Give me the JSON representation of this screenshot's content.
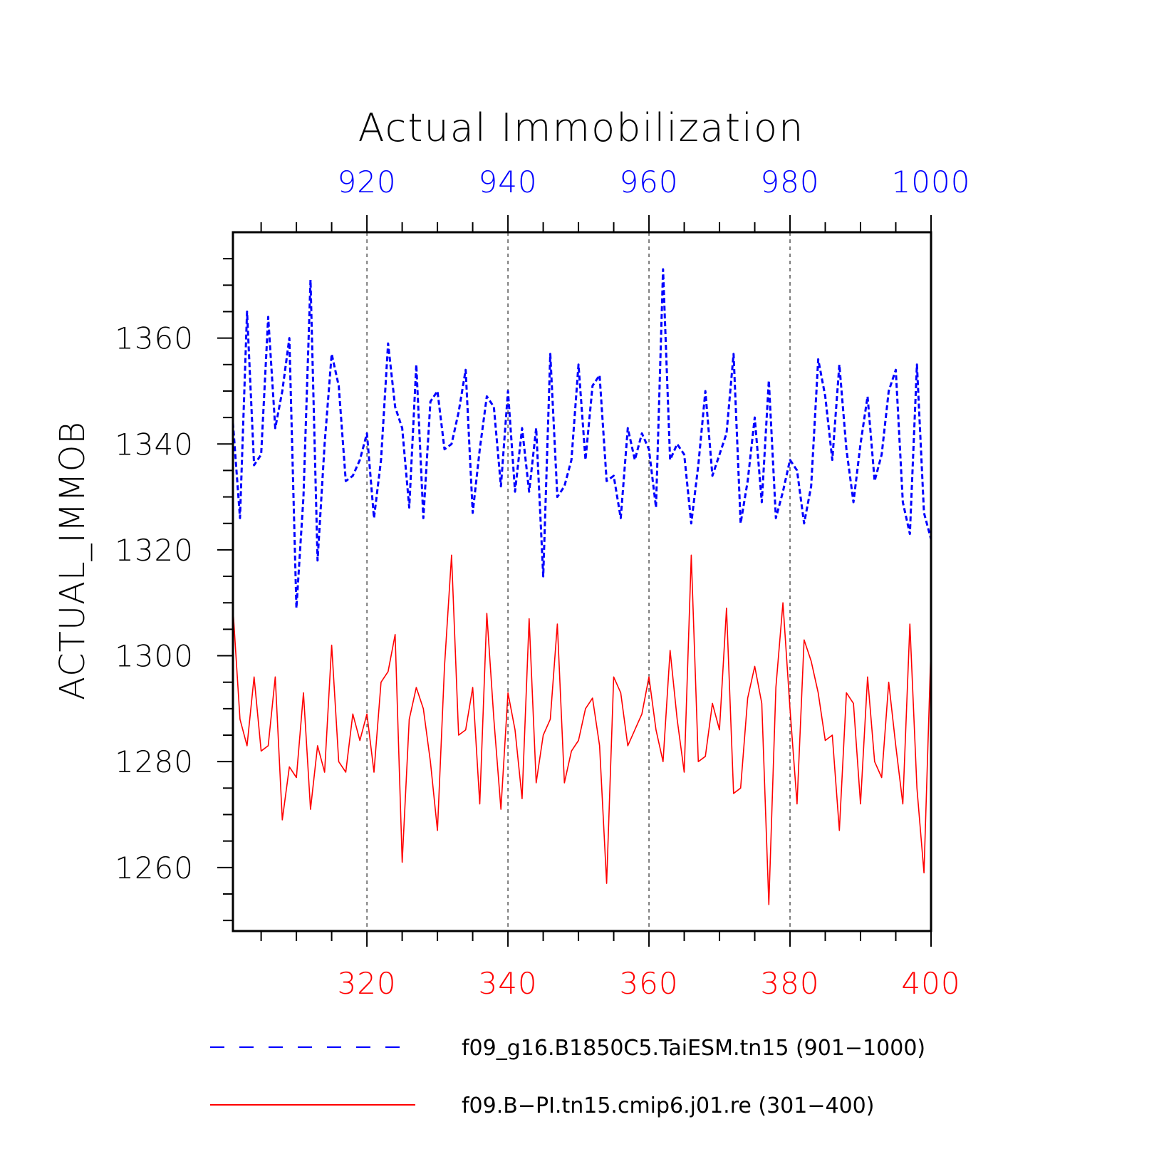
{
  "chart_data": {
    "type": "line",
    "title": "Actual Immobilization",
    "ylabel": "ACTUAL_IMMOB",
    "ylim": [
      1248,
      1380
    ],
    "y_ticks": [
      "1260",
      "1280",
      "1300",
      "1320",
      "1340",
      "1360"
    ],
    "top_axis": {
      "range": [
        901,
        1000
      ],
      "ticks": [
        "920",
        "940",
        "960",
        "980",
        "1000"
      ],
      "color": "#0000ff"
    },
    "bottom_axis": {
      "range": [
        301,
        400
      ],
      "ticks": [
        "320",
        "340",
        "360",
        "380",
        "400"
      ],
      "color": "#ff0000"
    },
    "grid": "dashed vertical at major x ticks",
    "legend_position": "bottom",
    "series": [
      {
        "name": "f09_g16.B1850C5.TaiESM.tn15 (901−1000)",
        "axis": "top",
        "color": "#0000ff",
        "style": "dashed",
        "x_start": 901,
        "values": [
          1344,
          1326,
          1365,
          1336,
          1338,
          1364,
          1343,
          1350,
          1360,
          1309,
          1330,
          1371,
          1318,
          1340,
          1357,
          1351,
          1333,
          1334,
          1337,
          1342,
          1326,
          1337,
          1359,
          1347,
          1343,
          1328,
          1355,
          1326,
          1348,
          1350,
          1339,
          1340,
          1346,
          1354,
          1327,
          1339,
          1349,
          1347,
          1332,
          1350,
          1331,
          1343,
          1331,
          1343,
          1315,
          1357,
          1330,
          1332,
          1337,
          1355,
          1337,
          1351,
          1353,
          1333,
          1334,
          1326,
          1343,
          1337,
          1342,
          1339,
          1328,
          1373,
          1337,
          1340,
          1338,
          1325,
          1336,
          1350,
          1334,
          1338,
          1342,
          1357,
          1325,
          1333,
          1345,
          1329,
          1352,
          1326,
          1331,
          1337,
          1335,
          1325,
          1332,
          1356,
          1349,
          1337,
          1355,
          1339,
          1329,
          1340,
          1349,
          1333,
          1338,
          1350,
          1354,
          1329,
          1323,
          1355,
          1327,
          1322
        ]
      },
      {
        "name": "f09.B−PI.tn15.cmip6.j01.re (301−400)",
        "axis": "bottom",
        "color": "#ff0000",
        "style": "solid",
        "x_start": 301,
        "values": [
          1309,
          1288,
          1283,
          1296,
          1282,
          1283,
          1296,
          1269,
          1279,
          1277,
          1293,
          1271,
          1283,
          1278,
          1302,
          1280,
          1278,
          1289,
          1284,
          1289,
          1278,
          1295,
          1297,
          1304,
          1261,
          1288,
          1294,
          1290,
          1280,
          1267,
          1298,
          1319,
          1285,
          1286,
          1294,
          1272,
          1308,
          1288,
          1271,
          1293,
          1286,
          1273,
          1307,
          1276,
          1285,
          1288,
          1306,
          1276,
          1282,
          1284,
          1290,
          1292,
          1283,
          1257,
          1296,
          1293,
          1283,
          1286,
          1289,
          1296,
          1286,
          1280,
          1301,
          1288,
          1278,
          1319,
          1280,
          1281,
          1291,
          1286,
          1309,
          1274,
          1275,
          1292,
          1298,
          1291,
          1253,
          1294,
          1310,
          1290,
          1272,
          1303,
          1299,
          1293,
          1284,
          1285,
          1267,
          1293,
          1291,
          1272,
          1296,
          1280,
          1277,
          1295,
          1283,
          1272,
          1306,
          1275,
          1259,
          1302
        ]
      }
    ]
  }
}
